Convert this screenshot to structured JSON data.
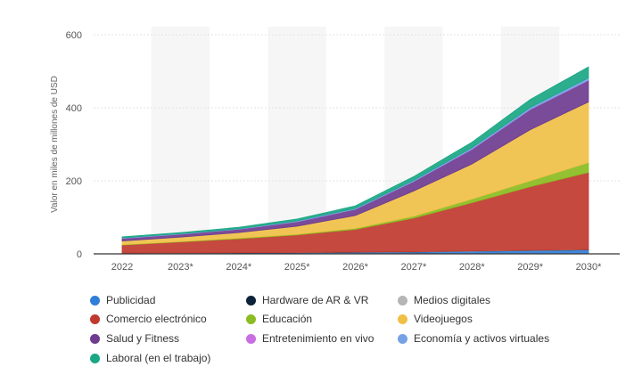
{
  "chart_data": {
    "type": "area",
    "stacked": true,
    "title": "",
    "xlabel": "",
    "ylabel": "Valor en miles de millones de USD",
    "categories": [
      "2022",
      "2023*",
      "2024*",
      "2025*",
      "2026*",
      "2027*",
      "2028*",
      "2029*",
      "2030*"
    ],
    "ylim": [
      0,
      600
    ],
    "yticks": [
      "0",
      "200",
      "400",
      "600"
    ],
    "grid": true,
    "legend": "bottom",
    "series": [
      {
        "name": "Publicidad",
        "color": "#2f7ed8",
        "values": [
          1.5,
          2,
          2.5,
          3,
          4,
          5,
          7,
          9,
          11
        ]
      },
      {
        "name": "Hardware de AR & VR",
        "color": "#0d233a",
        "values": [
          0.5,
          0.5,
          0.5,
          0.5,
          0.5,
          0.5,
          0.5,
          0.5,
          0.5
        ]
      },
      {
        "name": "Medios digitales",
        "color": "#b5b5b5",
        "values": [
          0.3,
          0.3,
          0.3,
          0.3,
          0.4,
          0.5,
          0.5,
          0.5,
          0.5
        ]
      },
      {
        "name": "Comercio electrónico",
        "color": "#c0392f",
        "values": [
          22,
          30,
          38,
          48,
          62,
          92,
          132,
          174,
          211
        ]
      },
      {
        "name": "Educación",
        "color": "#8bbc21",
        "values": [
          1,
          1,
          2,
          2,
          3,
          5,
          10,
          16,
          27
        ]
      },
      {
        "name": "Videojuegos",
        "color": "#f0c046",
        "values": [
          10,
          12,
          15,
          22,
          35,
          69,
          96,
          140,
          166
        ]
      },
      {
        "name": "Salud y Fitness",
        "color": "#6f3c8f",
        "values": [
          7,
          8,
          9,
          12,
          17,
          26,
          40,
          55,
          59
        ]
      },
      {
        "name": "Entretenimiento en vivo",
        "color": "#c96ee0",
        "values": [
          0.3,
          0.3,
          0.4,
          0.5,
          0.5,
          0.5,
          0.7,
          0.8,
          1
        ]
      },
      {
        "name": "Economía y activos virtuales",
        "color": "#77a1e5",
        "values": [
          1,
          1,
          1,
          2,
          2,
          3,
          4,
          5,
          6
        ]
      },
      {
        "name": "Laboral (en el trabajo)",
        "color": "#1aa784",
        "values": [
          3,
          3,
          4,
          5,
          7,
          10,
          15,
          22,
          30
        ]
      }
    ]
  }
}
